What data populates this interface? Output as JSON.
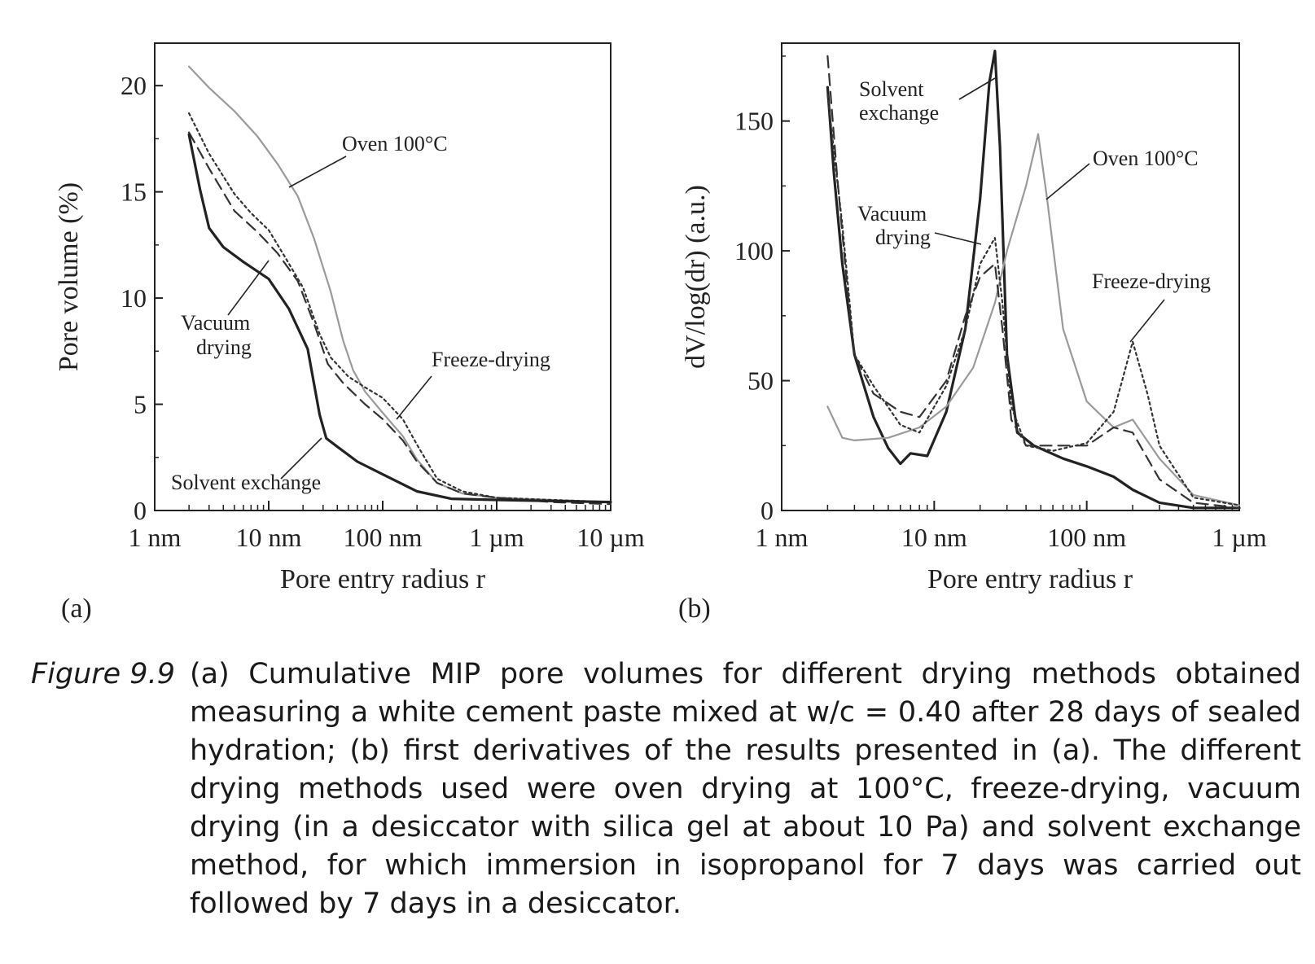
{
  "chart_data": [
    {
      "type": "line",
      "panel_label": "(a)",
      "xlabel": "Pore entry radius r",
      "ylabel": "Pore volume (%)",
      "x_scale": "log",
      "x_unit": "nm",
      "xlim": [
        1,
        10000
      ],
      "ylim": [
        0,
        22
      ],
      "x_ticks": [
        {
          "value": 1,
          "label": "1 nm"
        },
        {
          "value": 10,
          "label": "10 nm"
        },
        {
          "value": 100,
          "label": "100 nm"
        },
        {
          "value": 1000,
          "label": "1 µm"
        },
        {
          "value": 10000,
          "label": "10 µm"
        }
      ],
      "y_ticks": [
        {
          "value": 0,
          "label": "0"
        },
        {
          "value": 5,
          "label": "5"
        },
        {
          "value": 10,
          "label": "10"
        },
        {
          "value": 15,
          "label": "15"
        },
        {
          "value": 20,
          "label": "20"
        }
      ],
      "grid": false,
      "series": [
        {
          "name": "Oven 100°C",
          "color": "#9a9a9a",
          "dash": "solid",
          "points": [
            [
              2,
              20.9
            ],
            [
              3,
              19.9
            ],
            [
              5,
              18.8
            ],
            [
              8,
              17.6
            ],
            [
              12,
              16.3
            ],
            [
              18,
              14.8
            ],
            [
              25,
              12.8
            ],
            [
              35,
              10.3
            ],
            [
              45,
              8.0
            ],
            [
              55,
              6.6
            ],
            [
              70,
              5.6
            ],
            [
              100,
              4.6
            ],
            [
              150,
              3.5
            ],
            [
              200,
              2.4
            ],
            [
              300,
              1.3
            ],
            [
              500,
              0.8
            ],
            [
              1000,
              0.6
            ],
            [
              3000,
              0.5
            ],
            [
              10000,
              0.4
            ]
          ]
        },
        {
          "name": "Freeze-drying",
          "color": "#333333",
          "dash": "dotted",
          "points": [
            [
              2,
              18.7
            ],
            [
              3,
              16.8
            ],
            [
              5,
              14.9
            ],
            [
              7,
              14.0
            ],
            [
              10,
              13.2
            ],
            [
              14,
              11.9
            ],
            [
              20,
              10.5
            ],
            [
              28,
              8.3
            ],
            [
              35,
              7.2
            ],
            [
              50,
              6.3
            ],
            [
              70,
              5.8
            ],
            [
              100,
              5.3
            ],
            [
              150,
              4.3
            ],
            [
              200,
              3.1
            ],
            [
              300,
              1.5
            ],
            [
              500,
              0.9
            ],
            [
              1000,
              0.6
            ],
            [
              3000,
              0.5
            ],
            [
              10000,
              0.4
            ]
          ]
        },
        {
          "name": "Vacuum drying",
          "color": "#333333",
          "dash": "dashed",
          "points": [
            [
              2,
              17.8
            ],
            [
              3,
              16.1
            ],
            [
              5,
              14.1
            ],
            [
              8,
              13.1
            ],
            [
              12,
              12.1
            ],
            [
              18,
              10.8
            ],
            [
              25,
              8.8
            ],
            [
              33,
              6.9
            ],
            [
              45,
              6.0
            ],
            [
              70,
              5.0
            ],
            [
              100,
              4.3
            ],
            [
              150,
              3.3
            ],
            [
              200,
              2.3
            ],
            [
              300,
              1.3
            ],
            [
              500,
              0.8
            ],
            [
              1000,
              0.6
            ],
            [
              3000,
              0.4
            ],
            [
              10000,
              0.3
            ]
          ]
        },
        {
          "name": "Solvent exchange",
          "color": "#222222",
          "dash": "solid",
          "points": [
            [
              2,
              17.7
            ],
            [
              2.5,
              15.1
            ],
            [
              3,
              13.3
            ],
            [
              4,
              12.4
            ],
            [
              6,
              11.7
            ],
            [
              10,
              10.9
            ],
            [
              15,
              9.5
            ],
            [
              22,
              7.6
            ],
            [
              28,
              4.5
            ],
            [
              32,
              3.4
            ],
            [
              40,
              3.0
            ],
            [
              60,
              2.3
            ],
            [
              100,
              1.7
            ],
            [
              200,
              0.9
            ],
            [
              400,
              0.55
            ],
            [
              1000,
              0.5
            ],
            [
              3000,
              0.45
            ],
            [
              10000,
              0.4
            ]
          ]
        }
      ],
      "annotations": [
        {
          "text": [
            "Oven 100°C"
          ]
        },
        {
          "text": [
            "Vacuum",
            "drying"
          ]
        },
        {
          "text": [
            "Freeze-drying"
          ]
        },
        {
          "text": [
            "Solvent exchange"
          ]
        }
      ]
    },
    {
      "type": "line",
      "panel_label": "(b)",
      "xlabel": "Pore entry radius r",
      "ylabel": "dV/log(dr) (a.u.)",
      "x_scale": "log",
      "x_unit": "nm",
      "xlim": [
        1,
        1000
      ],
      "ylim": [
        0,
        180
      ],
      "x_ticks": [
        {
          "value": 1,
          "label": "1 nm"
        },
        {
          "value": 10,
          "label": "10 nm"
        },
        {
          "value": 100,
          "label": "100 nm"
        },
        {
          "value": 1000,
          "label": "1 µm"
        }
      ],
      "y_ticks": [
        {
          "value": 0,
          "label": "0"
        },
        {
          "value": 50,
          "label": "50"
        },
        {
          "value": 100,
          "label": "100"
        },
        {
          "value": 150,
          "label": "150"
        }
      ],
      "grid": false,
      "series": [
        {
          "name": "Solvent exchange",
          "color": "#222222",
          "dash": "solid",
          "points": [
            [
              2,
              163
            ],
            [
              2.2,
              130
            ],
            [
              2.5,
              95
            ],
            [
              3,
              60
            ],
            [
              4,
              36
            ],
            [
              5,
              24
            ],
            [
              6,
              18
            ],
            [
              7,
              22
            ],
            [
              9,
              21
            ],
            [
              12,
              38
            ],
            [
              16,
              70
            ],
            [
              20,
              120
            ],
            [
              23,
              165
            ],
            [
              25,
              177
            ],
            [
              27,
              140
            ],
            [
              30,
              60
            ],
            [
              35,
              30
            ],
            [
              45,
              25
            ],
            [
              70,
              20
            ],
            [
              100,
              17
            ],
            [
              150,
              13
            ],
            [
              200,
              8
            ],
            [
              300,
              3
            ],
            [
              500,
              1
            ],
            [
              1000,
              1
            ]
          ]
        },
        {
          "name": "Oven 100°C",
          "color": "#9a9a9a",
          "dash": "solid",
          "points": [
            [
              2,
              40
            ],
            [
              2.5,
              28
            ],
            [
              3,
              27
            ],
            [
              5,
              28
            ],
            [
              8,
              32
            ],
            [
              12,
              40
            ],
            [
              18,
              55
            ],
            [
              25,
              80
            ],
            [
              30,
              100
            ],
            [
              40,
              125
            ],
            [
              48,
              145
            ],
            [
              55,
              120
            ],
            [
              70,
              70
            ],
            [
              100,
              42
            ],
            [
              150,
              32
            ],
            [
              200,
              35
            ],
            [
              300,
              20
            ],
            [
              500,
              6
            ],
            [
              1000,
              2
            ]
          ]
        },
        {
          "name": "Vacuum drying",
          "color": "#333333",
          "dash": "dashed",
          "points": [
            [
              2,
              175
            ],
            [
              2.3,
              130
            ],
            [
              2.7,
              85
            ],
            [
              3,
              60
            ],
            [
              4,
              45
            ],
            [
              6,
              38
            ],
            [
              8,
              36
            ],
            [
              12,
              50
            ],
            [
              16,
              75
            ],
            [
              20,
              90
            ],
            [
              25,
              95
            ],
            [
              28,
              70
            ],
            [
              32,
              35
            ],
            [
              40,
              25
            ],
            [
              60,
              25
            ],
            [
              100,
              25
            ],
            [
              150,
              32
            ],
            [
              200,
              30
            ],
            [
              300,
              12
            ],
            [
              500,
              3
            ],
            [
              1000,
              1
            ]
          ]
        },
        {
          "name": "Freeze-drying",
          "color": "#333333",
          "dash": "dotted",
          "points": [
            [
              2,
              160
            ],
            [
              2.5,
              110
            ],
            [
              3,
              60
            ],
            [
              4,
              48
            ],
            [
              6,
              33
            ],
            [
              8,
              30
            ],
            [
              12,
              48
            ],
            [
              16,
              70
            ],
            [
              20,
              95
            ],
            [
              25,
              105
            ],
            [
              28,
              80
            ],
            [
              32,
              40
            ],
            [
              40,
              25
            ],
            [
              60,
              23
            ],
            [
              100,
              26
            ],
            [
              150,
              38
            ],
            [
              200,
              65
            ],
            [
              250,
              45
            ],
            [
              300,
              25
            ],
            [
              500,
              5
            ],
            [
              1000,
              2
            ]
          ]
        }
      ],
      "annotations": [
        {
          "text": [
            "Solvent",
            "exchange"
          ]
        },
        {
          "text": [
            "Oven 100°C"
          ]
        },
        {
          "text": [
            "Vacuum",
            "drying"
          ]
        },
        {
          "text": [
            "Freeze-drying"
          ]
        }
      ]
    }
  ],
  "caption": {
    "number": "Figure 9.9",
    "text": "(a) Cumulative MIP pore volumes for different drying methods obtained measuring a white cement paste mixed at w/c = 0.40 after 28 days of sealed hydration; (b) first derivatives of the results presented in (a). The different drying methods used were oven drying at 100°C, freeze-drying, vacuum drying (in a desiccator with silica gel at about 10 Pa) and solvent exchange method, for which immersion in isopropanol for 7 days was carried out followed by 7 days in a desiccator."
  }
}
